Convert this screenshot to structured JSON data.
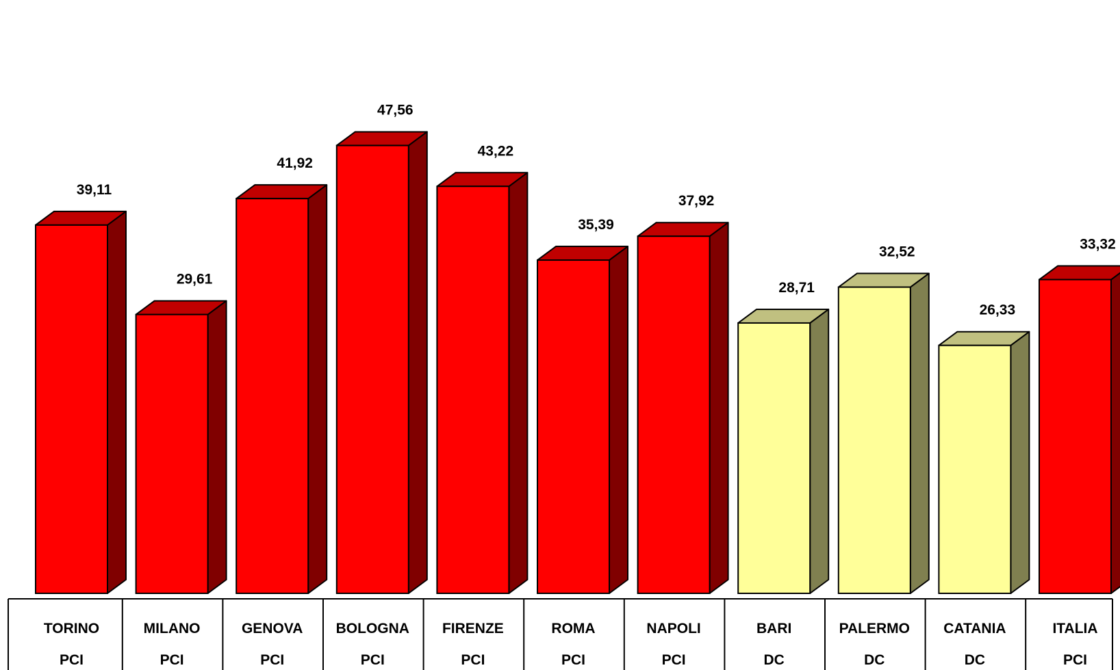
{
  "chart_data": {
    "type": "bar",
    "categories": [
      "TORINO",
      "MILANO",
      "GENOVA",
      "BOLOGNA",
      "FIRENZE",
      "ROMA",
      "NAPOLI",
      "BARI",
      "PALERMO",
      "CATANIA",
      "ITALIA"
    ],
    "parties": [
      "PCI",
      "PCI",
      "PCI",
      "PCI",
      "PCI",
      "PCI",
      "PCI",
      "DC",
      "DC",
      "DC",
      "PCI"
    ],
    "values": [
      39.11,
      29.61,
      41.92,
      47.56,
      43.22,
      35.39,
      37.92,
      28.71,
      32.52,
      26.33,
      33.32
    ],
    "value_labels": [
      "39,11",
      "29,61",
      "41,92",
      "47,56",
      "43,22",
      "35,39",
      "37,92",
      "28,71",
      "32,52",
      "26,33",
      "33,32"
    ],
    "ylim": [
      0,
      50
    ],
    "grid": false,
    "colors": {
      "PCI": {
        "front": "#ff0000",
        "top": "#c00000",
        "side": "#800000"
      },
      "DC": {
        "front": "#ffff99",
        "top": "#c0c080",
        "side": "#808050"
      }
    }
  }
}
